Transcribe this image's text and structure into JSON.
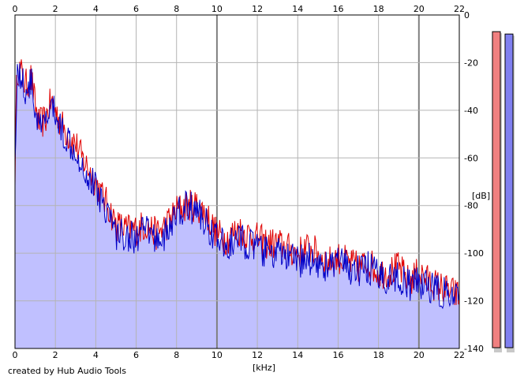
{
  "footer": {
    "credit": "created by Hub Audio Tools"
  },
  "chart_data": {
    "type": "area",
    "xlabel": "[kHz]",
    "ylabel": "[dB]",
    "xlim": [
      0,
      22
    ],
    "ylim": [
      -140,
      0
    ],
    "x_ticks": [
      0,
      2,
      4,
      6,
      8,
      10,
      12,
      14,
      16,
      18,
      20,
      22
    ],
    "y_ticks": [
      0,
      -20,
      -40,
      -60,
      -80,
      -100,
      -120,
      -140
    ],
    "x_tick_labels": [
      "0",
      "2",
      "4",
      "6",
      "8",
      "10",
      "12",
      "14",
      "16",
      "18",
      "20",
      "22"
    ],
    "y_tick_labels": [
      "0",
      "-20",
      "-40",
      "-60",
      "-80",
      "-100",
      "-120",
      "-140"
    ],
    "grid": true,
    "series": [
      {
        "color": "#e00000",
        "x": [
          0,
          0.1,
          0.3,
          0.5,
          0.8,
          1.0,
          1.2,
          1.5,
          1.8,
          2.0,
          2.3,
          2.6,
          3.0,
          3.3,
          3.6,
          4.0,
          4.3,
          4.6,
          5.0,
          5.5,
          6.0,
          6.5,
          7.0,
          7.5,
          8.0,
          8.5,
          9.0,
          9.5,
          10.0,
          10.5,
          11.0,
          11.5,
          12.0,
          12.5,
          13.0,
          13.5,
          14.0,
          14.5,
          15.0,
          15.5,
          16.0,
          16.5,
          17.0,
          17.5,
          18.0,
          18.5,
          19.0,
          19.5,
          20.0,
          20.5,
          21.0,
          21.5,
          22.0
        ],
        "values": [
          -66,
          -22,
          -24,
          -30,
          -26,
          -38,
          -46,
          -44,
          -36,
          -40,
          -46,
          -50,
          -54,
          -60,
          -64,
          -70,
          -76,
          -80,
          -88,
          -90,
          -90,
          -88,
          -92,
          -88,
          -82,
          -80,
          -80,
          -84,
          -92,
          -94,
          -90,
          -92,
          -94,
          -96,
          -96,
          -98,
          -100,
          -98,
          -100,
          -104,
          -102,
          -104,
          -106,
          -104,
          -108,
          -108,
          -106,
          -112,
          -108,
          -112,
          -114,
          -116,
          -118
        ]
      },
      {
        "color": "#0000c8",
        "x": [
          0,
          0.1,
          0.3,
          0.5,
          0.8,
          1.0,
          1.2,
          1.5,
          1.8,
          2.0,
          2.3,
          2.6,
          3.0,
          3.3,
          3.6,
          4.0,
          4.3,
          4.6,
          5.0,
          5.5,
          6.0,
          6.5,
          7.0,
          7.5,
          8.0,
          8.5,
          9.0,
          9.5,
          10.0,
          10.5,
          11.0,
          11.5,
          12.0,
          12.5,
          13.0,
          13.5,
          14.0,
          14.5,
          15.0,
          15.5,
          16.0,
          16.5,
          17.0,
          17.5,
          18.0,
          18.5,
          19.0,
          19.5,
          20.0,
          20.5,
          21.0,
          21.5,
          22.0
        ],
        "values": [
          -62,
          -24,
          -26,
          -32,
          -28,
          -40,
          -48,
          -46,
          -38,
          -42,
          -48,
          -52,
          -56,
          -62,
          -68,
          -72,
          -78,
          -82,
          -92,
          -92,
          -94,
          -90,
          -94,
          -92,
          -84,
          -80,
          -82,
          -88,
          -94,
          -98,
          -94,
          -96,
          -98,
          -100,
          -100,
          -102,
          -104,
          -102,
          -104,
          -106,
          -104,
          -106,
          -108,
          -106,
          -110,
          -110,
          -110,
          -114,
          -112,
          -114,
          -116,
          -118,
          -120
        ]
      }
    ],
    "level_meters": [
      {
        "color": "#f08080",
        "level_db": -7
      },
      {
        "color": "#8080f0",
        "level_db": -8
      }
    ],
    "fill_color": "#c0c0ff"
  }
}
